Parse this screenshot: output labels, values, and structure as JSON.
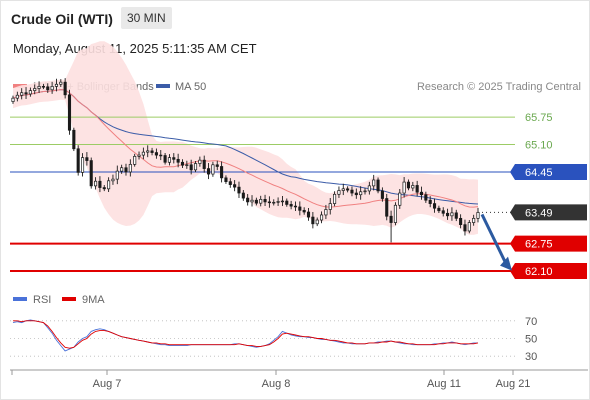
{
  "header": {
    "title": "Crude Oil (WTI)",
    "timeframe": "30 MIN",
    "timestamp": "Monday, August 11, 2025 5:11:35 AM CET"
  },
  "colors": {
    "ma20": "#f08080",
    "ma50": "#3b5ca8",
    "bands": "#fde0e0",
    "resistance_green": "#9ccc65",
    "support_red": "#e00000",
    "blue_level": "#2a52be",
    "candle": "#1a1a1a",
    "rsi": "#4a72d9",
    "ninema": "#e00000",
    "arrow": "#2c5aa0"
  },
  "chart_data": {
    "type": "candlestick",
    "instrument": "Crude Oil (WTI)",
    "interval": "30 MIN",
    "legend": [
      {
        "name": "MA 20 + Bollinger Bands",
        "color": "#f08080"
      },
      {
        "name": "MA 50",
        "color": "#3b5ca8"
      }
    ],
    "watermark": "Research © 2025 Trading Central",
    "x_ticks": [
      "Aug 7",
      "Aug 8",
      "Aug 11",
      "Aug 21"
    ],
    "ylim": [
      61.65,
      66.75
    ],
    "levels": [
      {
        "label": "65.75",
        "value": 65.75,
        "style": "green"
      },
      {
        "label": "65.10",
        "value": 65.1,
        "style": "green"
      },
      {
        "label": "64.45",
        "value": 64.45,
        "style": "blue"
      },
      {
        "label": "63.49",
        "value": 63.49,
        "style": "current"
      },
      {
        "label": "62.75",
        "value": 62.75,
        "style": "red"
      },
      {
        "label": "62.10",
        "value": 62.1,
        "style": "red"
      }
    ],
    "closes": [
      66.2,
      66.27,
      66.33,
      66.3,
      66.38,
      66.43,
      66.48,
      66.47,
      66.4,
      66.48,
      66.53,
      66.58,
      66.28,
      65.44,
      65.0,
      64.44,
      64.79,
      64.72,
      64.12,
      64.23,
      64.08,
      64.05,
      64.24,
      64.28,
      64.47,
      64.55,
      64.45,
      64.63,
      64.82,
      64.85,
      64.92,
      64.95,
      64.91,
      64.85,
      64.84,
      64.68,
      64.79,
      64.75,
      64.68,
      64.61,
      64.62,
      64.5,
      64.65,
      64.73,
      64.53,
      64.4,
      64.62,
      64.58,
      64.31,
      64.22,
      64.15,
      64.09,
      63.95,
      63.83,
      63.74,
      63.78,
      63.71,
      63.8,
      63.74,
      63.72,
      63.73,
      63.75,
      63.76,
      63.68,
      63.64,
      63.62,
      63.54,
      63.5,
      63.38,
      63.22,
      63.31,
      63.43,
      63.56,
      63.7,
      63.92,
      64.01,
      64.05,
      64.02,
      63.95,
      63.91,
      63.98,
      64.0,
      64.12,
      64.26,
      64.0,
      63.82,
      63.4,
      63.25,
      63.66,
      63.95,
      64.21,
      64.07,
      64.13,
      63.97,
      63.91,
      63.78,
      63.7,
      63.59,
      63.53,
      63.47,
      63.41,
      63.48,
      63.35,
      63.2,
      63.05,
      63.25,
      63.35,
      63.49
    ],
    "rsi": {
      "name": "RSI",
      "signal_name": "9MA",
      "ticks": [
        30,
        50,
        70
      ],
      "ylim": [
        20,
        80
      ],
      "values": [
        68,
        69,
        68,
        70,
        71,
        70,
        69,
        68,
        62,
        56,
        48,
        42,
        36,
        38,
        40,
        46,
        50,
        52,
        58,
        60,
        61,
        60,
        58,
        56,
        54,
        52,
        51,
        50,
        49,
        48,
        47,
        46,
        45,
        44,
        43,
        43,
        42,
        42,
        42,
        42,
        42,
        43,
        43,
        43,
        43,
        43,
        43,
        43,
        43,
        43,
        43,
        44,
        44,
        43,
        42,
        41,
        40,
        41,
        42,
        44,
        48,
        52,
        58,
        56,
        54,
        53,
        52,
        52,
        51,
        51,
        50,
        49,
        49,
        48,
        47,
        46,
        45,
        45,
        44,
        44,
        44,
        44,
        45,
        45,
        46,
        46,
        47,
        47,
        46,
        45,
        44,
        44,
        43,
        43,
        43,
        43,
        43,
        44,
        44,
        45,
        45,
        46,
        45,
        44,
        43,
        44,
        45,
        45
      ],
      "signal": [
        70,
        70,
        69,
        70,
        70,
        70,
        69,
        68,
        64,
        58,
        51,
        45,
        40,
        39,
        40,
        44,
        48,
        50,
        55,
        58,
        59,
        59,
        58,
        56,
        54,
        52,
        51,
        50,
        49,
        48,
        47,
        46,
        45,
        45,
        44,
        44,
        43,
        43,
        43,
        43,
        43,
        43,
        43,
        43,
        43,
        43,
        43,
        43,
        43,
        43,
        43,
        43,
        44,
        43,
        42,
        42,
        41,
        41,
        42,
        43,
        46,
        50,
        55,
        56,
        55,
        54,
        53,
        52,
        52,
        51,
        50,
        50,
        49,
        48,
        48,
        47,
        46,
        45,
        45,
        44,
        44,
        44,
        45,
        45,
        45,
        46,
        46,
        47,
        46,
        46,
        45,
        44,
        44,
        43,
        43,
        43,
        43,
        43,
        44,
        44,
        45,
        45,
        45,
        44,
        44,
        44,
        44,
        45
      ]
    }
  }
}
